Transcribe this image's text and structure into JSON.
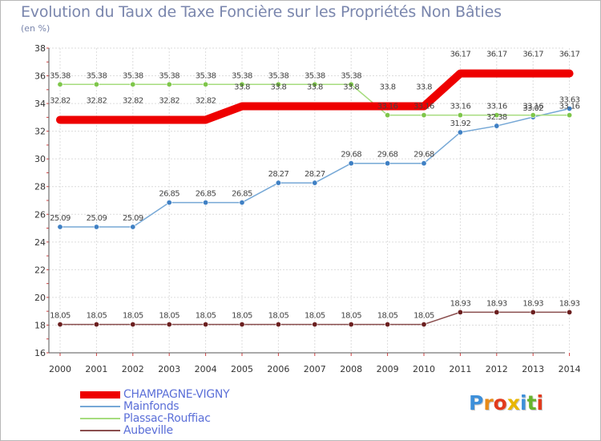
{
  "page": {
    "title": "Evolution du Taux de Taxe Foncière sur les Propriétés Non Bâties",
    "unit": "(en %)"
  },
  "logo": {
    "text": "Proxiti",
    "letter_colors": [
      "#3d8fd9",
      "#e88a17",
      "#e23a1c",
      "#e8b600",
      "#3d8fd9",
      "#68b42c",
      "#e23a1c"
    ]
  },
  "chart_data": {
    "type": "line",
    "title": "Evolution du Taux de Taxe Foncière sur les Propriétés Non Bâties",
    "ylabel": "(en %)",
    "xlabel": "",
    "x": [
      "2000",
      "2001",
      "2002",
      "2003",
      "2004",
      "2005",
      "2006",
      "2007",
      "2008",
      "2009",
      "2010",
      "2011",
      "2012",
      "2013",
      "2014"
    ],
    "ylim": [
      16,
      38
    ],
    "yticks": [
      16,
      18,
      20,
      22,
      24,
      26,
      28,
      30,
      32,
      34,
      36,
      38
    ],
    "grid": true,
    "legend_position": "bottom-left",
    "series": [
      {
        "name": "CHAMPAGNE-VIGNY",
        "color": "#ee0000",
        "style": "thick",
        "values": [
          32.82,
          32.82,
          32.82,
          32.82,
          32.82,
          33.8,
          33.8,
          33.8,
          33.8,
          33.8,
          33.8,
          36.17,
          36.17,
          36.17,
          36.17
        ],
        "labels": [
          "32.82",
          "32.82",
          "32.82",
          "32.82",
          "32.82",
          "33.8",
          "33.8",
          "33.8",
          "33.8",
          "33.8",
          "33.8",
          "36.17",
          "36.17",
          "36.17",
          "36.17"
        ]
      },
      {
        "name": "Mainfonds",
        "color": "#76a8d6",
        "marker": "#3f80c4",
        "values": [
          25.09,
          25.09,
          25.09,
          26.85,
          26.85,
          26.85,
          28.27,
          28.27,
          29.68,
          29.68,
          29.68,
          31.92,
          32.38,
          33.02,
          33.63
        ],
        "labels": [
          "25.09",
          "25.09",
          "25.09",
          "26.85",
          "26.85",
          "26.85",
          "28.27",
          "28.27",
          "29.68",
          "29.68",
          "29.68",
          "31.92",
          "32.38",
          "33.02",
          "33.63"
        ]
      },
      {
        "name": "Plassac-Rouffiac",
        "color": "#a6dc7e",
        "marker": "#7ec64a",
        "values": [
          35.38,
          35.38,
          35.38,
          35.38,
          35.38,
          35.38,
          35.38,
          35.38,
          35.38,
          33.16,
          33.16,
          33.16,
          33.16,
          33.16,
          33.16
        ],
        "labels": [
          "35.38",
          "35.38",
          "35.38",
          "35.38",
          "35.38",
          "35.38",
          "35.38",
          "35.38",
          "35.38",
          "33.16",
          "33.16",
          "33.16",
          "33.16",
          "33.16",
          "33.16"
        ]
      },
      {
        "name": "Aubeville",
        "color": "#8a4e4e",
        "marker": "#6b1f1f",
        "values": [
          18.05,
          18.05,
          18.05,
          18.05,
          18.05,
          18.05,
          18.05,
          18.05,
          18.05,
          18.05,
          18.05,
          18.93,
          18.93,
          18.93,
          18.93
        ],
        "labels": [
          "18.05",
          "18.05",
          "18.05",
          "18.05",
          "18.05",
          "18.05",
          "18.05",
          "18.05",
          "18.05",
          "18.05",
          "18.05",
          "18.93",
          "18.93",
          "18.93",
          "18.93"
        ]
      }
    ]
  }
}
